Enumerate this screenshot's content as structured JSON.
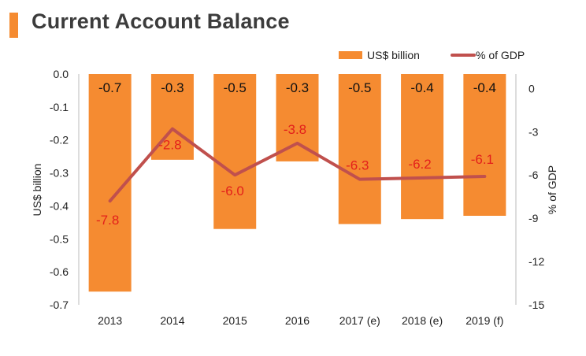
{
  "header": {
    "title": "Current Account Balance"
  },
  "colors": {
    "bar": "#f58b31",
    "line": "#c0504d",
    "line_label": "#e3201b",
    "accent": "#f58b31"
  },
  "chart_data": {
    "type": "bar",
    "categories": [
      "2013",
      "2014",
      "2015",
      "2016",
      "2017 (e)",
      "2018 (e)",
      "2019 (f)"
    ],
    "series": [
      {
        "name": "US$ billion",
        "type": "bar",
        "axis": "left",
        "values": [
          -0.66,
          -0.26,
          -0.47,
          -0.265,
          -0.455,
          -0.44,
          -0.43
        ],
        "labels": [
          "-0.7",
          "-0.3",
          "-0.5",
          "-0.3",
          "-0.5",
          "-0.4",
          "-0.4"
        ]
      },
      {
        "name": "% of GDP",
        "type": "line",
        "axis": "right",
        "values": [
          -7.8,
          -2.8,
          -6.0,
          -3.8,
          -6.3,
          -6.2,
          -6.1
        ],
        "labels": [
          "-7.8",
          "-2.8",
          "-6.0",
          "-3.8",
          "-6.3",
          "-6.2",
          "-6.1"
        ]
      }
    ],
    "y_left": {
      "label": "US$ billion",
      "range": [
        -0.7,
        0.0
      ],
      "ticks": [
        "0.0",
        "-0.1",
        "-0.2",
        "-0.3",
        "-0.4",
        "-0.5",
        "-0.6",
        "-0.7"
      ]
    },
    "y_right": {
      "label": "% of GDP",
      "range": [
        -15,
        1
      ],
      "ticks": [
        "0",
        "-3",
        "-6",
        "-9",
        "-12",
        "-15"
      ]
    },
    "legend": {
      "position": "top-right",
      "items": [
        "US$ billion",
        "% of GDP"
      ]
    },
    "grid": false
  }
}
